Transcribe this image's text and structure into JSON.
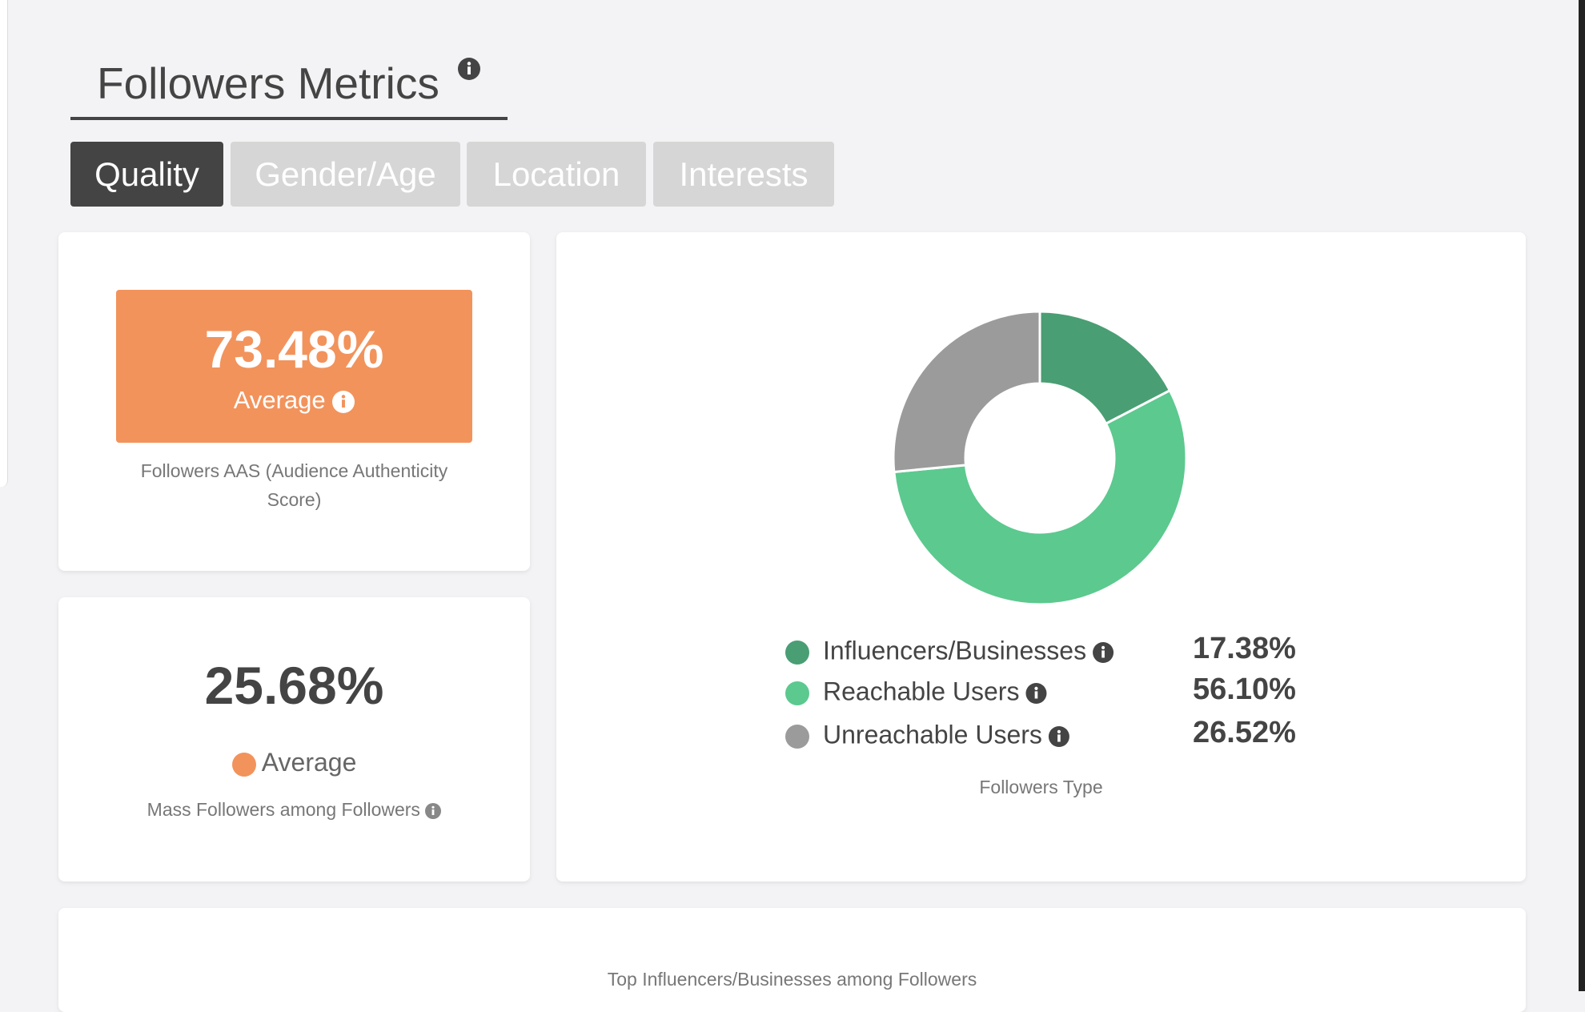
{
  "header": {
    "title": "Followers Metrics"
  },
  "tabs": [
    "Quality",
    "Gender/Age",
    "Location",
    "Interests"
  ],
  "aas_card": {
    "value": "73.48%",
    "rating": "Average",
    "caption": "Followers AAS (Audience Authenticity Score)"
  },
  "mass_card": {
    "value": "25.68%",
    "rating": "Average",
    "caption": "Mass Followers among Followers"
  },
  "chart_data": {
    "type": "pie",
    "title": "Followers Type",
    "categories": [
      "Influencers/Businesses",
      "Reachable Users",
      "Unreachable Users"
    ],
    "values": [
      17.38,
      56.1,
      26.52
    ],
    "value_labels": [
      "17.38%",
      "56.10%",
      "26.52%"
    ],
    "colors": [
      "#4a9e74",
      "#5cc98f",
      "#9b9b9b"
    ]
  },
  "bottom_card": {
    "title": "Top Influencers/Businesses among Followers"
  }
}
